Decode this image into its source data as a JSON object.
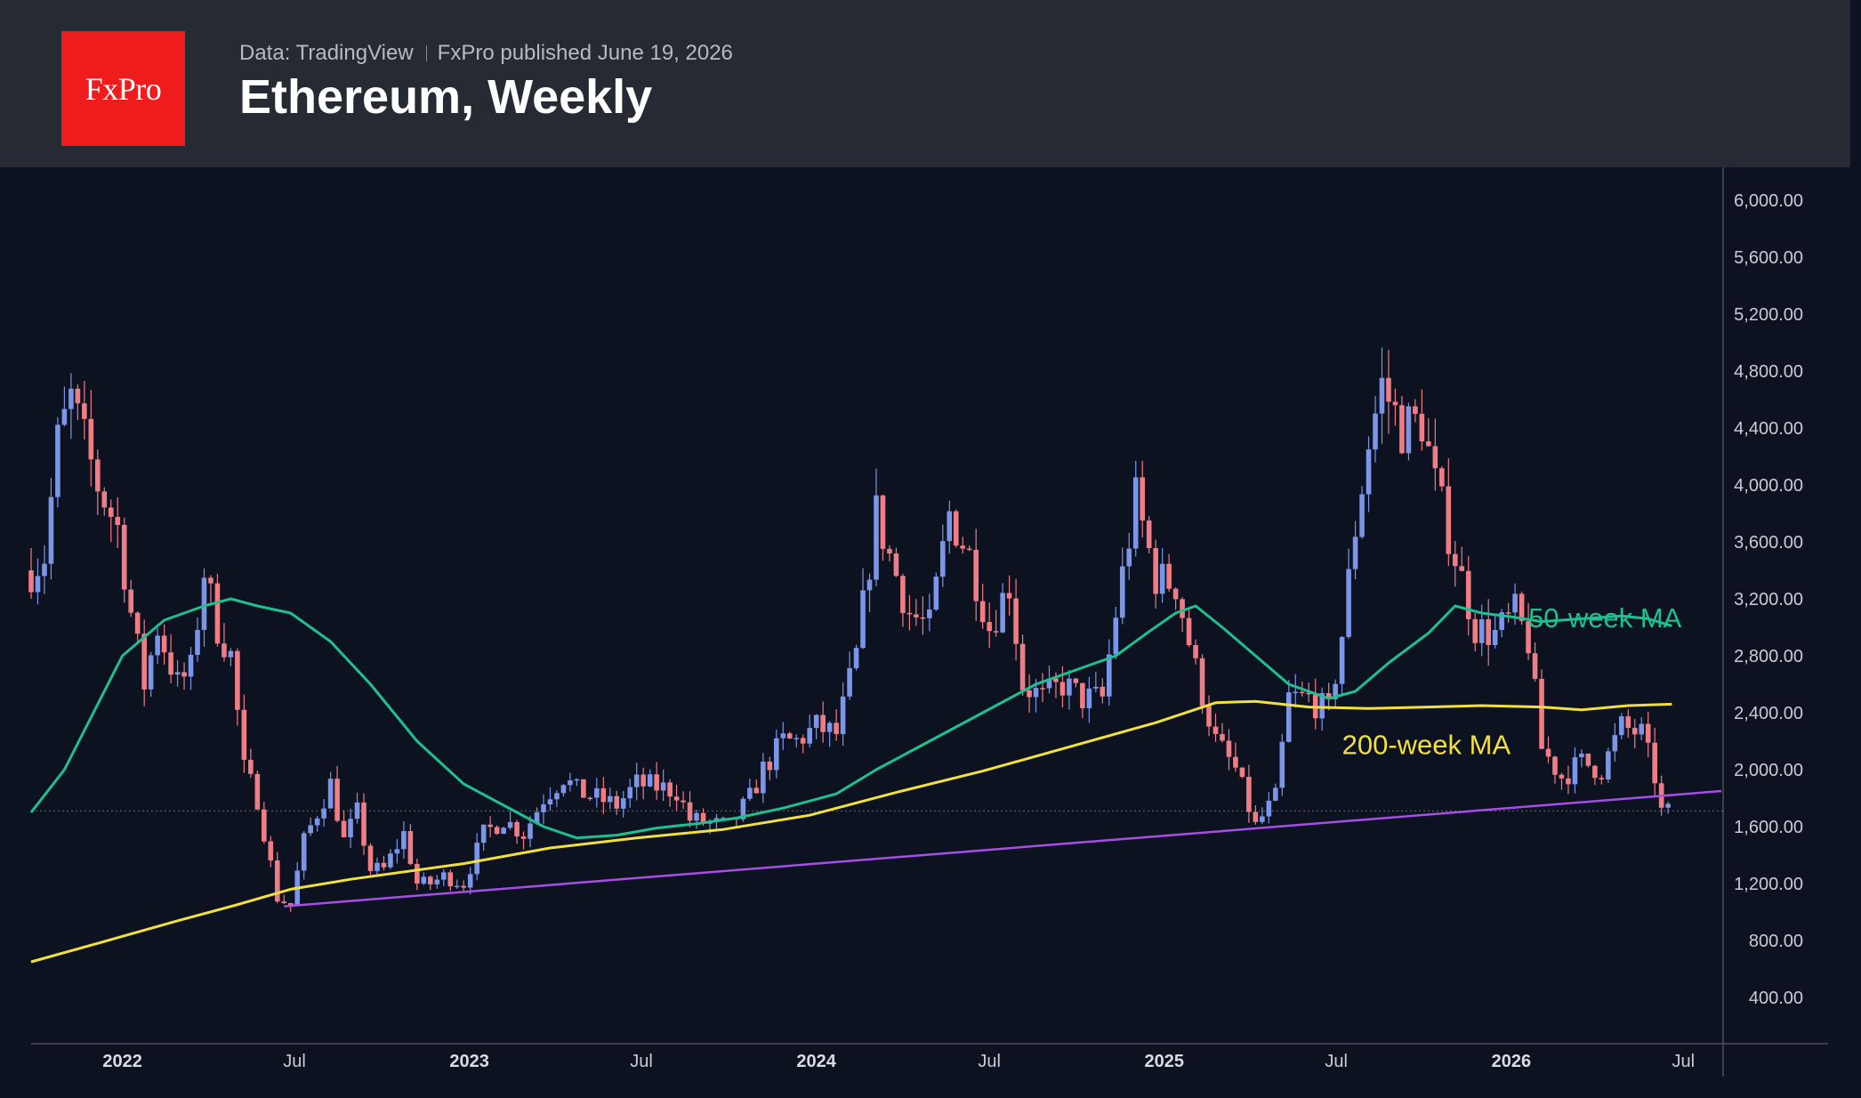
{
  "header": {
    "logo_text": "FxPro",
    "data_source": "Data: TradingView",
    "published": "FxPro published June 19, 2026",
    "title": "Ethereum, Weekly"
  },
  "colors": {
    "background": "#0d1220",
    "header": "#262a33",
    "logo": "#ee1c1c",
    "up": "#7b95e8",
    "down": "#ef7d85",
    "ma50": "#1fbf8f",
    "ma200": "#f2e03c",
    "trendline": "#a64ee6"
  },
  "chart_data": {
    "type": "candlestick",
    "title": "Ethereum, Weekly",
    "ylim": [
      0,
      6400
    ],
    "yticks": [
      "400.00",
      "800.00",
      "1,200.00",
      "1,600.00",
      "2,000.00",
      "2,400.00",
      "2,800.00",
      "3,200.00",
      "3,600.00",
      "4,000.00",
      "4,400.00",
      "4,800.00",
      "5,200.00",
      "5,600.00",
      "6,000.00"
    ],
    "ytick_values": [
      400,
      800,
      1200,
      1600,
      2000,
      2400,
      2800,
      3200,
      3600,
      4000,
      4400,
      4800,
      5200,
      5600,
      6000
    ],
    "xlim": [
      "2021-09-27",
      "2026-08-10"
    ],
    "xticks": [
      {
        "date": "2022-01-01",
        "label": "2022",
        "major": true
      },
      {
        "date": "2022-07-01",
        "label": "Jul",
        "major": false
      },
      {
        "date": "2023-01-01",
        "label": "2023",
        "major": true
      },
      {
        "date": "2023-07-01",
        "label": "Jul",
        "major": false
      },
      {
        "date": "2024-01-01",
        "label": "2024",
        "major": true
      },
      {
        "date": "2024-07-01",
        "label": "Jul",
        "major": false
      },
      {
        "date": "2025-01-01",
        "label": "2025",
        "major": true
      },
      {
        "date": "2025-07-01",
        "label": "Jul",
        "major": false
      },
      {
        "date": "2026-01-01",
        "label": "2026",
        "major": true
      },
      {
        "date": "2026-07-01",
        "label": "Jul",
        "major": false
      }
    ],
    "price_close_path": [
      [
        "2021-09-27",
        3400
      ],
      [
        "2021-10-11",
        3500
      ],
      [
        "2021-10-25",
        4300
      ],
      [
        "2021-11-08",
        4600
      ],
      [
        "2021-11-22",
        4300
      ],
      [
        "2021-12-06",
        4000
      ],
      [
        "2021-12-27",
        3700
      ],
      [
        "2022-01-10",
        3100
      ],
      [
        "2022-01-24",
        2600
      ],
      [
        "2022-02-07",
        3000
      ],
      [
        "2022-02-28",
        2600
      ],
      [
        "2022-03-14",
        2700
      ],
      [
        "2022-03-28",
        3400
      ],
      [
        "2022-04-11",
        3000
      ],
      [
        "2022-04-25",
        2800
      ],
      [
        "2022-05-09",
        2000
      ],
      [
        "2022-05-23",
        1800
      ],
      [
        "2022-06-13",
        1100
      ],
      [
        "2022-06-27",
        1050
      ],
      [
        "2022-07-11",
        1500
      ],
      [
        "2022-07-25",
        1700
      ],
      [
        "2022-08-08",
        1900
      ],
      [
        "2022-08-22",
        1500
      ],
      [
        "2022-09-05",
        1700
      ],
      [
        "2022-09-19",
        1300
      ],
      [
        "2022-10-03",
        1300
      ],
      [
        "2022-10-24",
        1550
      ],
      [
        "2022-11-07",
        1200
      ],
      [
        "2022-11-21",
        1200
      ],
      [
        "2022-12-05",
        1250
      ],
      [
        "2022-12-26",
        1200
      ],
      [
        "2023-01-16",
        1550
      ],
      [
        "2023-02-06",
        1650
      ],
      [
        "2023-02-27",
        1550
      ],
      [
        "2023-03-20",
        1800
      ],
      [
        "2023-04-10",
        1950
      ],
      [
        "2023-04-24",
        1850
      ],
      [
        "2023-05-15",
        1800
      ],
      [
        "2023-06-05",
        1750
      ],
      [
        "2023-06-26",
        1900
      ],
      [
        "2023-07-17",
        1880
      ],
      [
        "2023-08-07",
        1850
      ],
      [
        "2023-08-21",
        1650
      ],
      [
        "2023-09-11",
        1620
      ],
      [
        "2023-10-02",
        1600
      ],
      [
        "2023-10-23",
        1800
      ],
      [
        "2023-11-06",
        2000
      ],
      [
        "2023-11-27",
        2200
      ],
      [
        "2023-12-11",
        2200
      ],
      [
        "2024-01-01",
        2300
      ],
      [
        "2024-01-22",
        2250
      ],
      [
        "2024-02-12",
        2800
      ],
      [
        "2024-03-04",
        3800
      ],
      [
        "2024-03-18",
        3500
      ],
      [
        "2024-04-08",
        3100
      ],
      [
        "2024-04-29",
        3000
      ],
      [
        "2024-05-20",
        3800
      ],
      [
        "2024-06-10",
        3500
      ],
      [
        "2024-07-01",
        3000
      ],
      [
        "2024-07-22",
        3300
      ],
      [
        "2024-08-05",
        2600
      ],
      [
        "2024-08-26",
        2500
      ],
      [
        "2024-09-16",
        2600
      ],
      [
        "2024-10-07",
        2500
      ],
      [
        "2024-10-28",
        2500
      ],
      [
        "2024-11-11",
        3100
      ],
      [
        "2024-12-02",
        3900
      ],
      [
        "2024-12-23",
        3350
      ],
      [
        "2025-01-13",
        3300
      ],
      [
        "2025-02-03",
        2700
      ],
      [
        "2025-02-24",
        2200
      ],
      [
        "2025-03-17",
        2000
      ],
      [
        "2025-04-07",
        1600
      ],
      [
        "2025-04-28",
        1800
      ],
      [
        "2025-05-12",
        2500
      ],
      [
        "2025-06-02",
        2500
      ],
      [
        "2025-06-23",
        2400
      ],
      [
        "2025-07-07",
        2950
      ],
      [
        "2025-07-21",
        3700
      ],
      [
        "2025-08-04",
        4300
      ],
      [
        "2025-08-18",
        4700
      ],
      [
        "2025-09-08",
        4400
      ],
      [
        "2025-09-29",
        4450
      ],
      [
        "2025-10-13",
        4000
      ],
      [
        "2025-11-03",
        3500
      ],
      [
        "2025-11-24",
        3000
      ],
      [
        "2025-12-15",
        2950
      ],
      [
        "2026-01-05",
        3100
      ],
      [
        "2026-01-19",
        2900
      ],
      [
        "2026-02-02",
        2150
      ],
      [
        "2026-02-23",
        1950
      ],
      [
        "2026-03-16",
        2050
      ],
      [
        "2026-04-06",
        2000
      ],
      [
        "2026-04-27",
        2300
      ],
      [
        "2026-05-18",
        2250
      ],
      [
        "2026-06-01",
        1950
      ],
      [
        "2026-06-08",
        1700
      ],
      [
        "2026-06-19",
        1700
      ]
    ],
    "last_price": 1710,
    "series": [
      {
        "name": "50-week MA",
        "color": "#1fbf8f",
        "points": [
          [
            "2021-09-27",
            1700
          ],
          [
            "2021-11-01",
            2000
          ],
          [
            "2022-01-01",
            2800
          ],
          [
            "2022-02-14",
            3050
          ],
          [
            "2022-03-28",
            3150
          ],
          [
            "2022-04-25",
            3200
          ],
          [
            "2022-05-23",
            3150
          ],
          [
            "2022-06-27",
            3100
          ],
          [
            "2022-08-08",
            2900
          ],
          [
            "2022-09-19",
            2600
          ],
          [
            "2022-11-07",
            2200
          ],
          [
            "2022-12-26",
            1900
          ],
          [
            "2023-02-06",
            1750
          ],
          [
            "2023-03-20",
            1600
          ],
          [
            "2023-04-24",
            1520
          ],
          [
            "2023-06-05",
            1540
          ],
          [
            "2023-07-17",
            1590
          ],
          [
            "2023-08-28",
            1620
          ],
          [
            "2023-10-09",
            1660
          ],
          [
            "2023-11-27",
            1730
          ],
          [
            "2024-01-22",
            1830
          ],
          [
            "2024-03-04",
            2000
          ],
          [
            "2024-04-15",
            2150
          ],
          [
            "2024-05-27",
            2300
          ],
          [
            "2024-07-08",
            2450
          ],
          [
            "2024-08-19",
            2600
          ],
          [
            "2024-09-30",
            2700
          ],
          [
            "2024-11-11",
            2800
          ],
          [
            "2024-12-16",
            2970
          ],
          [
            "2025-01-13",
            3100
          ],
          [
            "2025-02-03",
            3150
          ],
          [
            "2025-03-03",
            3000
          ],
          [
            "2025-04-07",
            2800
          ],
          [
            "2025-05-12",
            2600
          ],
          [
            "2025-06-23",
            2500
          ],
          [
            "2025-07-21",
            2550
          ],
          [
            "2025-08-25",
            2750
          ],
          [
            "2025-10-06",
            2960
          ],
          [
            "2025-11-03",
            3150
          ],
          [
            "2025-12-01",
            3100
          ],
          [
            "2026-01-05",
            3070
          ],
          [
            "2026-02-02",
            3040
          ],
          [
            "2026-03-16",
            3060
          ],
          [
            "2026-04-27",
            3080
          ],
          [
            "2026-05-25",
            3060
          ],
          [
            "2026-06-19",
            3010
          ]
        ]
      },
      {
        "name": "200-week MA",
        "color": "#f2e03c",
        "points": [
          [
            "2021-09-27",
            650
          ],
          [
            "2021-12-06",
            780
          ],
          [
            "2022-03-01",
            940
          ],
          [
            "2022-05-01",
            1050
          ],
          [
            "2022-06-27",
            1160
          ],
          [
            "2022-08-29",
            1230
          ],
          [
            "2022-12-26",
            1340
          ],
          [
            "2023-03-27",
            1450
          ],
          [
            "2023-06-26",
            1520
          ],
          [
            "2023-09-25",
            1580
          ],
          [
            "2023-12-25",
            1680
          ],
          [
            "2024-03-25",
            1840
          ],
          [
            "2024-06-24",
            1990
          ],
          [
            "2024-09-23",
            2160
          ],
          [
            "2024-12-23",
            2330
          ],
          [
            "2025-02-24",
            2470
          ],
          [
            "2025-04-07",
            2480
          ],
          [
            "2025-06-02",
            2440
          ],
          [
            "2025-08-04",
            2430
          ],
          [
            "2025-10-06",
            2440
          ],
          [
            "2025-12-01",
            2450
          ],
          [
            "2026-02-02",
            2440
          ],
          [
            "2026-03-16",
            2420
          ],
          [
            "2026-05-04",
            2450
          ],
          [
            "2026-06-19",
            2460
          ]
        ]
      },
      {
        "name": "trendline",
        "color": "#a64ee6",
        "points": [
          [
            "2022-06-20",
            1040
          ],
          [
            "2026-08-10",
            1850
          ]
        ]
      }
    ],
    "annotations": [
      {
        "text": "50-week MA",
        "date": "2026-01-19",
        "value": 3000,
        "color": "#1fbf8f"
      },
      {
        "text": "200-week MA",
        "date": "2025-07-07",
        "value": 2110,
        "color": "#f2e03c"
      }
    ]
  }
}
